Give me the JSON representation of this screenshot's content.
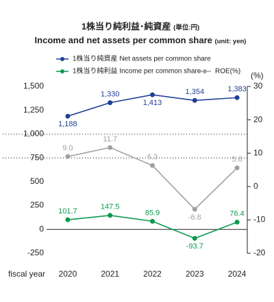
{
  "chart_data": {
    "type": "line",
    "title": "1株当り純利益･純資産",
    "title_unit": "(単位:円)",
    "subtitle": "Income and net assets per common share",
    "subtitle_unit": "(unit: yen)",
    "x_label": "fiscal year",
    "y2_label": "(%)",
    "categories": [
      "2020",
      "2021",
      "2022",
      "2023",
      "2024"
    ],
    "ylim": [
      -250,
      1500
    ],
    "yticks": [
      {
        "value": 1500,
        "label": "1,500"
      },
      {
        "value": 1250,
        "label": "1,250"
      },
      {
        "value": 1000,
        "label": "1,000"
      },
      750,
      500,
      250,
      0,
      -250
    ],
    "y2lim": [
      -20,
      30
    ],
    "y2ticks": [
      30,
      20,
      10,
      0,
      -10,
      -20
    ],
    "axis_break": [
      750,
      1000
    ],
    "zero_line": true,
    "series": [
      {
        "name": "1株当り純資産 Net assets per common share",
        "color": "#1f3f94",
        "values": [
          1188,
          1330,
          1413,
          1354,
          1383
        ],
        "value_labels": [
          "1,188",
          "1,330",
          "1,413",
          "1,354",
          "1,383"
        ]
      },
      {
        "name": "1株当り純利益 Income per common share",
        "color": "#0a9a4a",
        "values": [
          101.7,
          147.5,
          85.9,
          -93.7,
          76.4
        ]
      },
      {
        "name": "ROE(%)",
        "color": "#a0a0a0",
        "axis": "y2",
        "values": [
          9.0,
          11.7,
          6.3,
          -6.8,
          5.6
        ],
        "value_labels": [
          "9.0",
          "11.7",
          "6.3",
          "-6.8",
          "5.6"
        ]
      }
    ]
  }
}
